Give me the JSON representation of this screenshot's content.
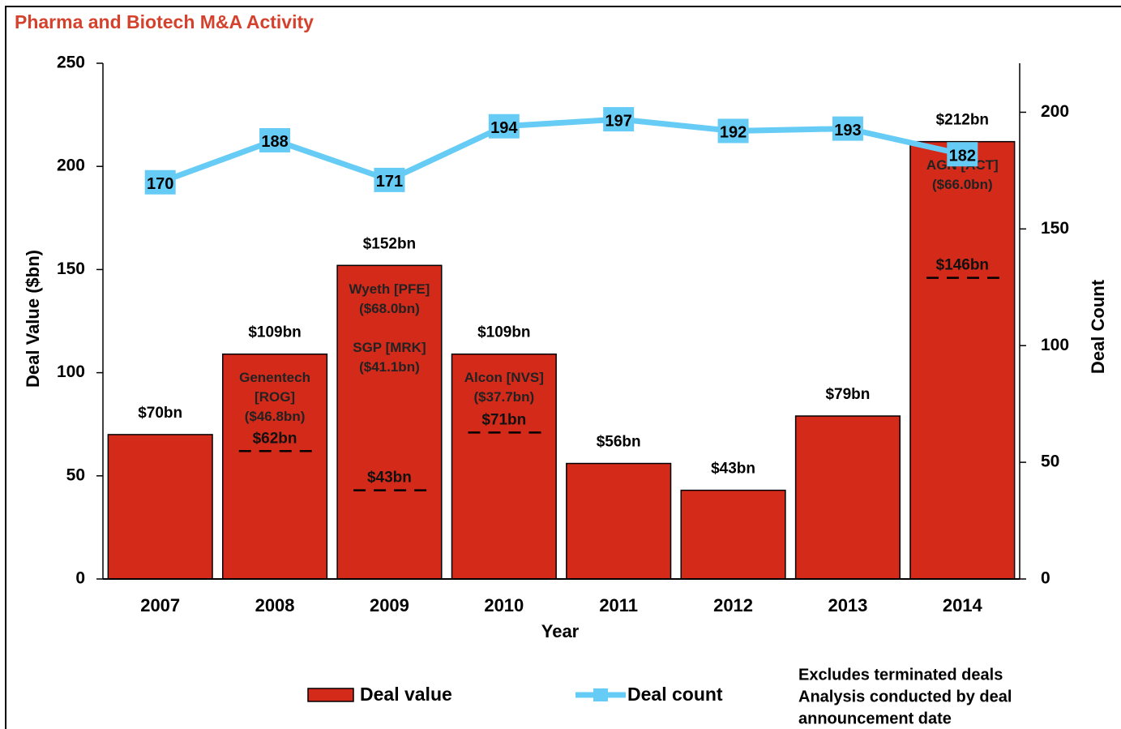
{
  "chart_data": {
    "type": "bar",
    "title": "Pharma and Biotech M&A Activity",
    "x_label": "Year",
    "y_label": "Deal Value ($bn)",
    "y2_label": "Deal Count",
    "categories": [
      "2007",
      "2008",
      "2009",
      "2010",
      "2011",
      "2012",
      "2013",
      "2014"
    ],
    "series": [
      {
        "name": "Deal value",
        "type": "bar",
        "color": "#d42a1a",
        "values": [
          70,
          109,
          152,
          109,
          56,
          43,
          79,
          212
        ],
        "value_labels": [
          "$70bn",
          "$109bn",
          "$152bn",
          "$109bn",
          "$56bn",
          "$43bn",
          "$79bn",
          "$212bn"
        ]
      },
      {
        "name": "Deal count",
        "type": "line",
        "axis": "y2",
        "color": "#66ccf5",
        "values": [
          170,
          188,
          171,
          194,
          197,
          192,
          193,
          182
        ]
      }
    ],
    "dashed_values": [
      null,
      62,
      43,
      71,
      null,
      null,
      null,
      146
    ],
    "dashed_value_labels": [
      null,
      "$62bn",
      "$43bn",
      "$71bn",
      null,
      null,
      null,
      "$146bn"
    ],
    "bar_annotations": [
      null,
      [
        [
          "Genentech",
          "[ROG]",
          "($46.8bn)"
        ]
      ],
      [
        [
          "Wyeth [PFE]",
          "($68.0bn)"
        ],
        [
          "SGP [MRK]",
          "($41.1bn)"
        ]
      ],
      [
        [
          "Alcon [NVS]",
          "($37.7bn)"
        ]
      ],
      null,
      null,
      null,
      [
        [
          "AGN [ACT]",
          "($66.0bn)"
        ]
      ]
    ],
    "ylim": [
      0,
      250
    ],
    "yticks": [
      0,
      50,
      100,
      150,
      200,
      250
    ],
    "y2lim": [
      0,
      221
    ],
    "y2ticks": [
      0,
      50,
      100,
      150,
      200
    ],
    "notes": [
      "Excludes terminated deals",
      "Analysis conducted by deal",
      "announcement date"
    ]
  }
}
